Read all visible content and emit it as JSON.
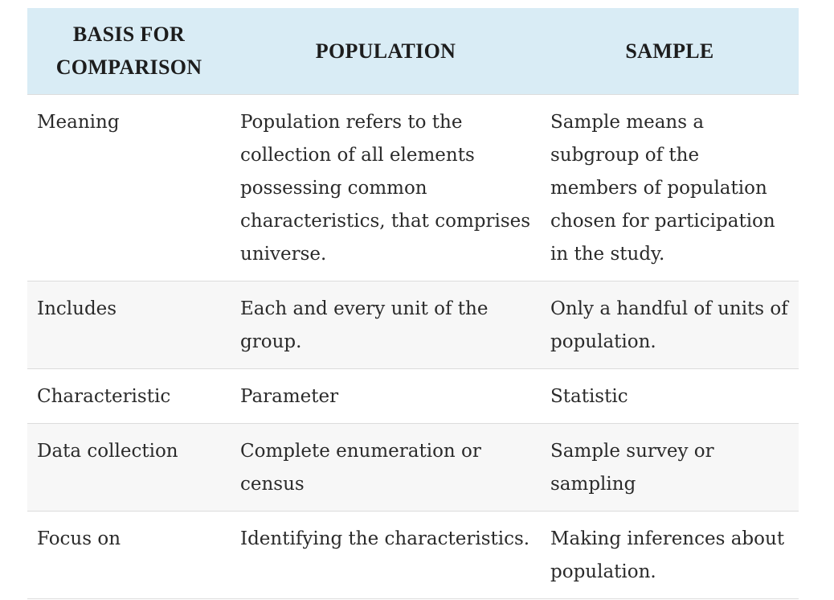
{
  "table": {
    "headers": [
      "BASIS FOR COMPARISON",
      "POPULATION",
      "SAMPLE"
    ],
    "rows": [
      {
        "basis": "Meaning",
        "population": "Population refers to the collection of all elements possessing common characteristics, that comprises universe.",
        "sample": "Sample means a subgroup of the members of population chosen for participation in the study."
      },
      {
        "basis": "Includes",
        "population": "Each and every unit of the group.",
        "sample": "Only a handful of units of population."
      },
      {
        "basis": "Characteristic",
        "population": "Parameter",
        "sample": "Statistic"
      },
      {
        "basis": "Data collection",
        "population": "Complete enumeration or census",
        "sample": "Sample survey or sampling"
      },
      {
        "basis": "Focus on",
        "population": "Identifying the characteristics.",
        "sample": "Making inferences about population."
      }
    ]
  },
  "colors": {
    "header_bg": "#d9ecf5",
    "row_alt_bg": "#f7f7f7",
    "border": "#dcdcdc"
  }
}
